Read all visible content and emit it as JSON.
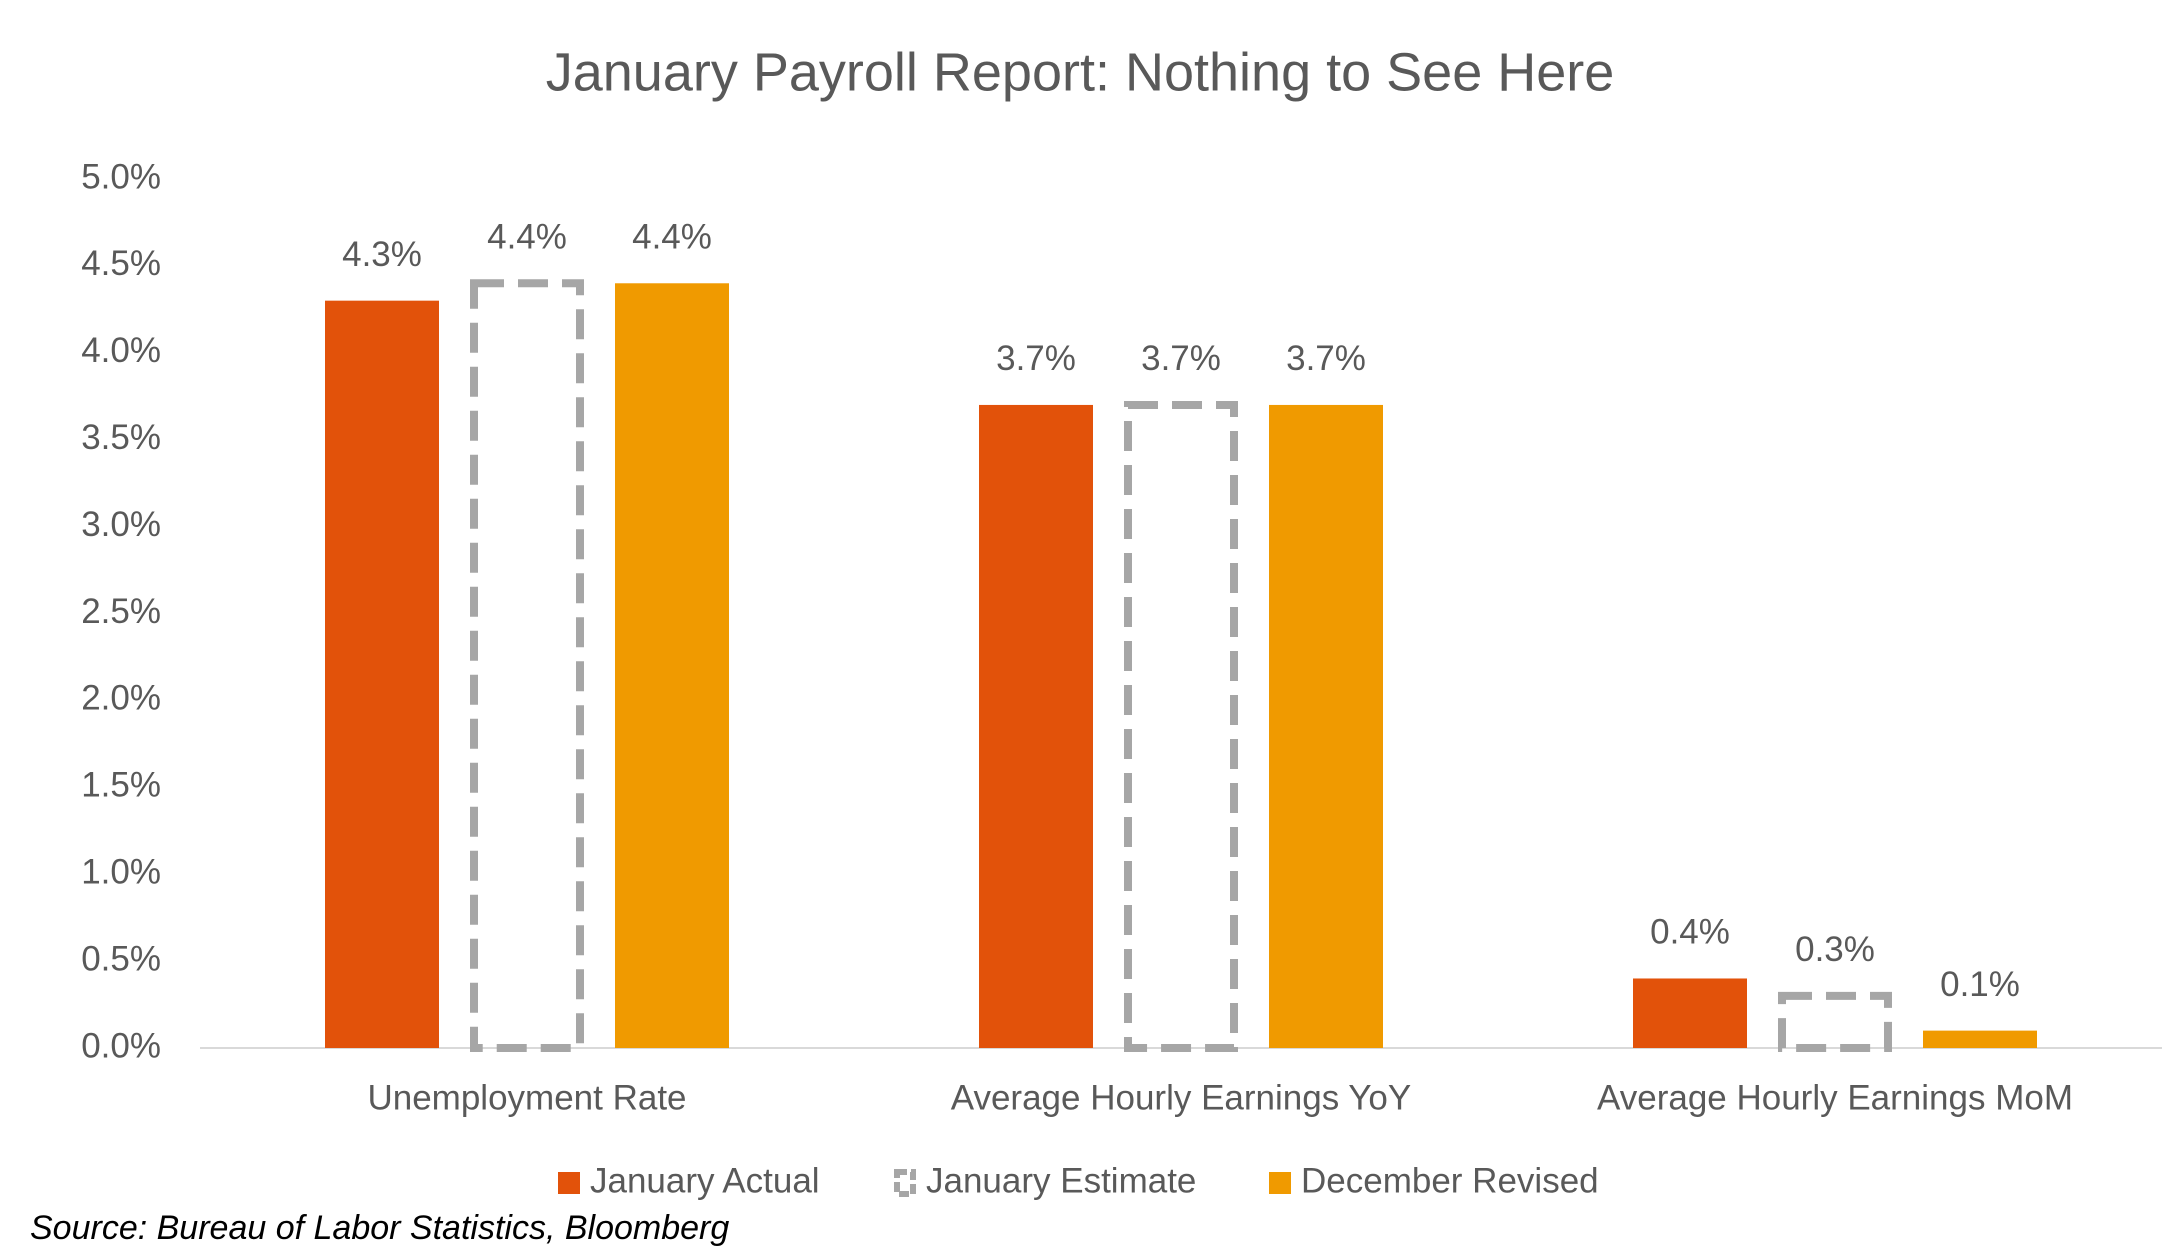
{
  "chart_data": {
    "type": "bar",
    "title": "January Payroll Report: Nothing to See Here",
    "categories": [
      "Unemployment Rate",
      "Average Hourly Earnings YoY",
      "Average Hourly Earnings MoM"
    ],
    "series": [
      {
        "name": "January Actual",
        "color": "#e2520a",
        "style": "solid",
        "values": [
          4.3,
          3.7,
          0.4
        ],
        "value_labels": [
          "4.3%",
          "3.7%",
          "0.4%"
        ]
      },
      {
        "name": "January Estimate",
        "color": "#a6a6a6",
        "style": "dashed",
        "values": [
          4.4,
          3.7,
          0.3
        ],
        "value_labels": [
          "4.4%",
          "3.7%",
          "0.3%"
        ]
      },
      {
        "name": "December Revised",
        "color": "#f09a00",
        "style": "solid",
        "values": [
          4.4,
          3.7,
          0.1
        ],
        "value_labels": [
          "4.4%",
          "3.7%",
          "0.1%"
        ]
      }
    ],
    "ylim": [
      0,
      5
    ],
    "yticks": [
      {
        "value": 0,
        "label": "0.0%"
      },
      {
        "value": 0.5,
        "label": "0.5%"
      },
      {
        "value": 1,
        "label": "1.0%"
      },
      {
        "value": 1.5,
        "label": "1.5%"
      },
      {
        "value": 2,
        "label": "2.0%"
      },
      {
        "value": 2.5,
        "label": "2.5%"
      },
      {
        "value": 3,
        "label": "3.0%"
      },
      {
        "value": 3.5,
        "label": "3.5%"
      },
      {
        "value": 4,
        "label": "4.0%"
      },
      {
        "value": 4.5,
        "label": "4.5%"
      },
      {
        "value": 5,
        "label": "5.0%"
      }
    ],
    "grid": false,
    "legend": "bottom",
    "source": "Source: Bureau of Labor Statistics, Bloomberg"
  }
}
